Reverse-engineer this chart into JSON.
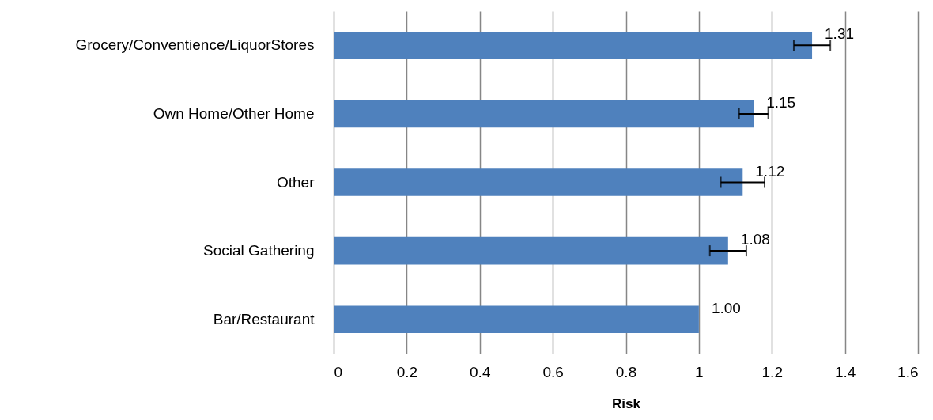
{
  "chart_data": {
    "type": "bar",
    "orientation": "horizontal",
    "xlabel": "Risk",
    "categories": [
      "Grocery/Conventience/LiquorStores",
      "Own Home/Other Home",
      "Other",
      "Social Gathering",
      "Bar/Restaurant"
    ],
    "values": [
      1.31,
      1.15,
      1.12,
      1.08,
      1.0
    ],
    "errors": [
      [
        1.26,
        1.36
      ],
      [
        1.11,
        1.19
      ],
      [
        1.06,
        1.18
      ],
      [
        1.03,
        1.13
      ],
      null
    ],
    "value_labels": [
      "1.31",
      "1.15",
      "1.12",
      "1.08",
      "1.00"
    ],
    "color": "#4f81bd",
    "xlim": [
      0,
      1.6
    ],
    "xticks": [
      0,
      0.2,
      0.4,
      0.6,
      0.8,
      1,
      1.2,
      1.4,
      1.6
    ],
    "grid": "x"
  }
}
